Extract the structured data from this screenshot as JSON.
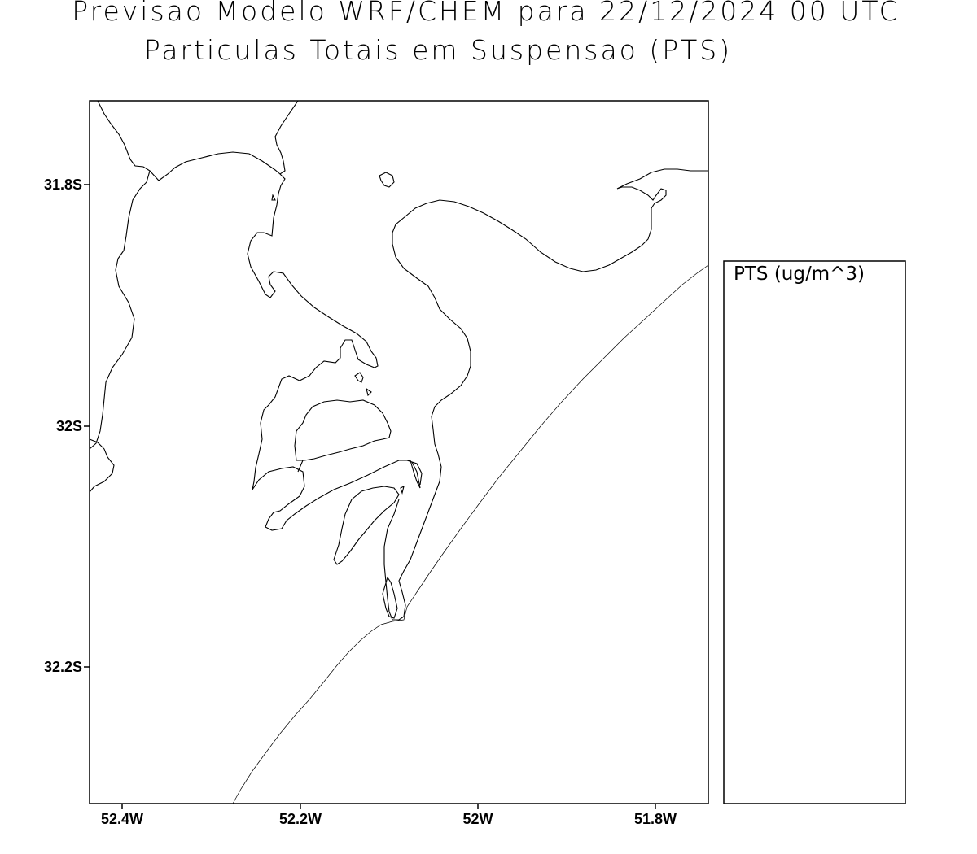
{
  "title": {
    "line1": "Previsao Modelo WRF/CHEM para 22/12/2024 00 UTC",
    "line2": "Particulas Totais em Suspensao (PTS)"
  },
  "map": {
    "lat_ticks": [
      "31.8S",
      "32S",
      "32.2S"
    ],
    "lon_ticks": [
      "52.4W",
      "52.2W",
      "52W",
      "51.8W"
    ]
  },
  "legend": {
    "title": "PTS (ug/m^3)"
  }
}
